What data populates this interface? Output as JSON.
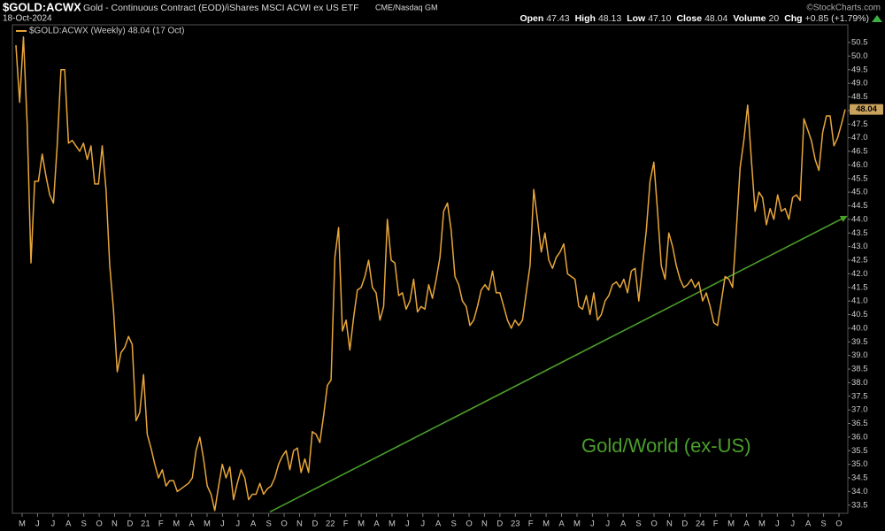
{
  "header": {
    "symbol": "$GOLD:ACWX",
    "description": "Gold - Continuous Contract (EOD)/iShares MSCI ACWI ex US ETF",
    "exchange": "CME/Nasdaq GM",
    "date": "18-Oct-2024",
    "copyright": "©StockCharts.com",
    "quote": [
      {
        "label": "Open",
        "value": "47.43"
      },
      {
        "label": "High",
        "value": "48.13"
      },
      {
        "label": "Low",
        "value": "47.10"
      },
      {
        "label": "Close",
        "value": "48.04"
      },
      {
        "label": "Volume",
        "value": "20"
      },
      {
        "label": "Chg",
        "value": "+0.85 (+1.79%)"
      }
    ]
  },
  "chart_data": {
    "type": "line",
    "annotation": "Gold/World (ex-US)",
    "annotation_color": "#4a9e2a",
    "series": [
      {
        "name": "$GOLD:ACWX (Weekly) 48.04 (17 Oct)",
        "color": "#e8a63a",
        "values": [
          50.4,
          48.3,
          50.7,
          47.5,
          42.4,
          45.4,
          45.4,
          46.4,
          45.6,
          44.9,
          44.6,
          46.7,
          49.5,
          49.5,
          46.8,
          46.9,
          46.7,
          46.5,
          46.8,
          46.2,
          46.7,
          45.3,
          45.3,
          46.7,
          45.1,
          42.3,
          40.7,
          38.4,
          39.1,
          39.3,
          39.7,
          39.4,
          36.6,
          36.9,
          38.3,
          36.1,
          35.6,
          35.0,
          34.5,
          34.8,
          34.2,
          34.4,
          34.4,
          34.0,
          34.1,
          34.2,
          34.3,
          34.5,
          35.5,
          36.0,
          35.2,
          34.2,
          33.9,
          33.3,
          34.2,
          35.0,
          34.5,
          34.9,
          33.7,
          34.3,
          34.8,
          34.5,
          33.7,
          33.9,
          33.9,
          34.3,
          33.9,
          34.1,
          34.2,
          34.5,
          35.0,
          35.3,
          35.5,
          34.8,
          35.5,
          35.6,
          34.7,
          35.2,
          34.7,
          36.2,
          36.1,
          35.8,
          36.8,
          37.9,
          38.1,
          42.6,
          43.7,
          39.9,
          40.3,
          39.2,
          40.4,
          41.4,
          41.5,
          41.9,
          42.5,
          41.5,
          41.3,
          40.3,
          40.8,
          44.0,
          42.5,
          42.4,
          41.2,
          41.3,
          40.7,
          41.0,
          41.8,
          40.6,
          40.8,
          40.7,
          41.6,
          41.1,
          41.8,
          42.6,
          44.3,
          44.6,
          43.6,
          41.9,
          41.6,
          41.0,
          40.8,
          40.1,
          40.3,
          40.8,
          41.4,
          41.6,
          41.4,
          42.1,
          41.3,
          41.3,
          40.8,
          40.3,
          40.0,
          40.3,
          40.1,
          40.3,
          41.3,
          42.3,
          45.1,
          44.0,
          42.8,
          43.5,
          42.5,
          42.2,
          42.6,
          42.8,
          43.1,
          42.0,
          41.9,
          41.8,
          40.8,
          40.7,
          41.2,
          40.5,
          41.3,
          40.3,
          40.5,
          41.0,
          41.2,
          41.6,
          41.7,
          41.5,
          41.8,
          41.3,
          42.1,
          42.2,
          41.0,
          42.3,
          43.6,
          45.4,
          46.1,
          44.3,
          42.3,
          41.8,
          43.5,
          43.0,
          42.3,
          41.8,
          41.5,
          41.6,
          41.8,
          41.5,
          41.7,
          41.0,
          41.3,
          40.8,
          40.2,
          40.1,
          41.0,
          41.9,
          41.8,
          41.5,
          43.6,
          45.9,
          46.9,
          48.2,
          46.2,
          44.3,
          45.0,
          44.8,
          43.8,
          44.4,
          44.0,
          44.9,
          44.3,
          44.4,
          44.0,
          44.8,
          44.9,
          44.7,
          47.7,
          47.3,
          46.9,
          46.2,
          45.8,
          47.2,
          47.8,
          47.8,
          46.7,
          47.0,
          47.5,
          48.04
        ]
      }
    ],
    "trendline": {
      "color": "#4a9e2a",
      "values": [
        33.25,
        44.1
      ]
    },
    "month_labels": [
      "M",
      "J",
      "J",
      "A",
      "S",
      "O",
      "N",
      "D",
      "21",
      "F",
      "M",
      "A",
      "M",
      "J",
      "J",
      "A",
      "S",
      "O",
      "N",
      "D",
      "22",
      "F",
      "M",
      "A",
      "M",
      "J",
      "J",
      "A",
      "S",
      "O",
      "N",
      "D",
      "23",
      "F",
      "M",
      "A",
      "M",
      "J",
      "J",
      "A",
      "S",
      "O",
      "N",
      "D",
      "24",
      "F",
      "M",
      "A",
      "M",
      "J",
      "J",
      "A",
      "S",
      "O"
    ],
    "ylim": [
      33.2,
      51.15
    ],
    "yticks": [
      33.5,
      {
        "value": 34,
        "label": "34.0"
      },
      34.5,
      {
        "value": 35,
        "label": "35.0"
      },
      35.5,
      {
        "value": 36,
        "label": "36.0"
      },
      36.5,
      {
        "value": 37,
        "label": "37.0"
      },
      37.5,
      {
        "value": 38,
        "label": "38.0"
      },
      38.5,
      {
        "value": 39,
        "label": "39.0"
      },
      39.5,
      {
        "value": 40,
        "label": "40.0"
      },
      40.5,
      {
        "value": 41,
        "label": "41.0"
      },
      41.5,
      {
        "value": 42,
        "label": "42.0"
      },
      42.5,
      {
        "value": 43,
        "label": "43.0"
      },
      43.5,
      {
        "value": 44,
        "label": "44.0"
      },
      44.5,
      {
        "value": 45,
        "label": "45.0"
      },
      45.5,
      {
        "value": 46,
        "label": "46.0"
      },
      46.5,
      {
        "value": 47,
        "label": "47.0"
      },
      47.5,
      {
        "value": 48,
        "label": "48.0"
      },
      48.5,
      {
        "value": 49,
        "label": "49.0"
      },
      49.5,
      {
        "value": 50,
        "label": "50.0"
      },
      50.5
    ]
  }
}
